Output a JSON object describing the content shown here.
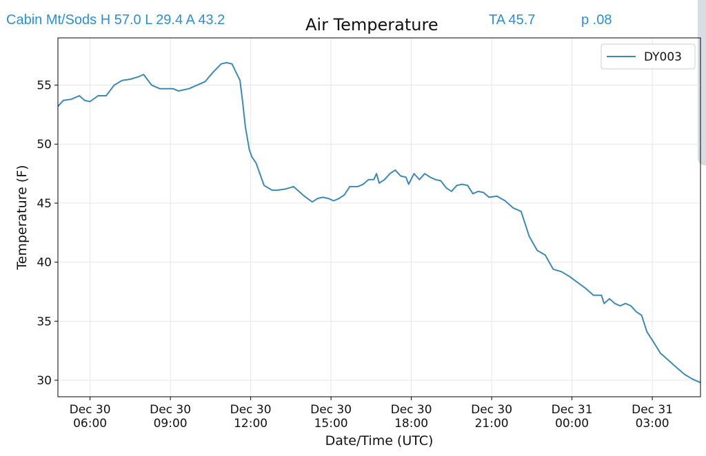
{
  "header": {
    "station_line": "Cabin Mt/Sods H 57.0 L 29.4 A 43.2",
    "ta": "TA 45.7",
    "p": "p .08"
  },
  "colors": {
    "overlay_text": "#2a8fd6",
    "series_line": "#3b88b6",
    "grid": "#e6e6e6"
  },
  "chart_data": {
    "type": "line",
    "title": "Air Temperature",
    "xlabel": "Date/Time (UTC)",
    "ylabel": "Temperature (F)",
    "ylim": [
      28.6,
      59.0
    ],
    "xlim": [
      4.8,
      28.8
    ],
    "grid": true,
    "legend_position": "top-right",
    "y_ticks": [
      30,
      35,
      40,
      45,
      50,
      55
    ],
    "x_ticks": [
      {
        "hour": 6,
        "line1": "Dec 30",
        "line2": "06:00"
      },
      {
        "hour": 9,
        "line1": "Dec 30",
        "line2": "09:00"
      },
      {
        "hour": 12,
        "line1": "Dec 30",
        "line2": "12:00"
      },
      {
        "hour": 15,
        "line1": "Dec 30",
        "line2": "15:00"
      },
      {
        "hour": 18,
        "line1": "Dec 30",
        "line2": "18:00"
      },
      {
        "hour": 21,
        "line1": "Dec 30",
        "line2": "21:00"
      },
      {
        "hour": 24,
        "line1": "Dec 31",
        "line2": "00:00"
      },
      {
        "hour": 27,
        "line1": "Dec 31",
        "line2": "03:00"
      }
    ],
    "series": [
      {
        "name": "DY003",
        "x_hours": [
          4.8,
          5.0,
          5.3,
          5.6,
          5.8,
          6.0,
          6.3,
          6.6,
          6.9,
          7.2,
          7.5,
          7.8,
          8.0,
          8.3,
          8.6,
          8.9,
          9.1,
          9.3,
          9.5,
          9.7,
          10.0,
          10.3,
          10.6,
          10.9,
          11.1,
          11.3,
          11.45,
          11.6,
          11.7,
          11.8,
          11.95,
          12.05,
          12.2,
          12.5,
          12.8,
          13.0,
          13.3,
          13.6,
          13.8,
          14.0,
          14.3,
          14.5,
          14.7,
          14.9,
          15.1,
          15.3,
          15.5,
          15.7,
          16.0,
          16.2,
          16.4,
          16.6,
          16.7,
          16.8,
          17.0,
          17.2,
          17.4,
          17.6,
          17.8,
          17.9,
          18.1,
          18.3,
          18.5,
          18.7,
          18.9,
          19.1,
          19.3,
          19.5,
          19.7,
          19.9,
          20.1,
          20.3,
          20.5,
          20.7,
          20.9,
          21.2,
          21.5,
          21.8,
          22.1,
          22.4,
          22.7,
          23.0,
          23.3,
          23.6,
          23.9,
          24.2,
          24.5,
          24.8,
          25.1,
          25.2,
          25.4,
          25.6,
          25.8,
          26.0,
          26.2,
          26.4,
          26.6,
          26.8,
          27.0,
          27.3,
          27.6,
          27.9,
          28.2,
          28.5,
          28.8
        ],
        "values": [
          53.2,
          53.7,
          53.8,
          54.1,
          53.7,
          53.6,
          54.1,
          54.1,
          55.0,
          55.4,
          55.5,
          55.7,
          55.9,
          55.0,
          54.7,
          54.7,
          54.7,
          54.5,
          54.6,
          54.7,
          55.0,
          55.3,
          56.1,
          56.8,
          56.9,
          56.8,
          56.1,
          55.4,
          53.6,
          51.5,
          49.5,
          48.9,
          48.4,
          46.5,
          46.1,
          46.1,
          46.2,
          46.4,
          46.0,
          45.6,
          45.1,
          45.4,
          45.5,
          45.4,
          45.2,
          45.4,
          45.7,
          46.4,
          46.4,
          46.6,
          47.0,
          47.0,
          47.5,
          46.7,
          47.0,
          47.5,
          47.8,
          47.3,
          47.2,
          46.6,
          47.5,
          47.0,
          47.5,
          47.2,
          47.0,
          46.9,
          46.3,
          46.0,
          46.5,
          46.6,
          46.5,
          45.8,
          46.0,
          45.9,
          45.5,
          45.6,
          45.2,
          44.6,
          44.3,
          42.2,
          41.0,
          40.6,
          39.4,
          39.2,
          38.8,
          38.3,
          37.8,
          37.2,
          37.2,
          36.5,
          36.9,
          36.5,
          36.3,
          36.5,
          36.3,
          35.8,
          35.5,
          34.1,
          33.4,
          32.3,
          31.7,
          31.1,
          30.5,
          30.1,
          29.8
        ]
      }
    ]
  }
}
